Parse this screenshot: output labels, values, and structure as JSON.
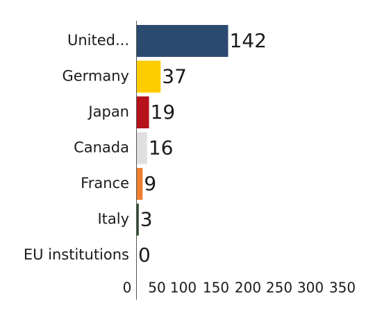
{
  "chart_data": {
    "type": "bar",
    "orientation": "horizontal",
    "title": "",
    "xlabel": "",
    "ylabel": "",
    "categories": [
      "United...",
      "Germany",
      "Japan",
      "Canada",
      "France",
      "Italy",
      "EU institutions"
    ],
    "values": [
      142,
      37,
      19,
      16,
      9,
      3,
      0
    ],
    "colors": [
      "#2b4a6f",
      "#ffcc00",
      "#b5121b",
      "#e0e0e0",
      "#f07f30",
      "#2f4a2f",
      "#cccccc"
    ],
    "xlim": [
      0,
      350
    ],
    "xticks": [
      "0",
      "50",
      "100",
      "150",
      "200",
      "250",
      "300",
      "350"
    ],
    "grid": false,
    "legend": "none",
    "data_labels": true
  }
}
